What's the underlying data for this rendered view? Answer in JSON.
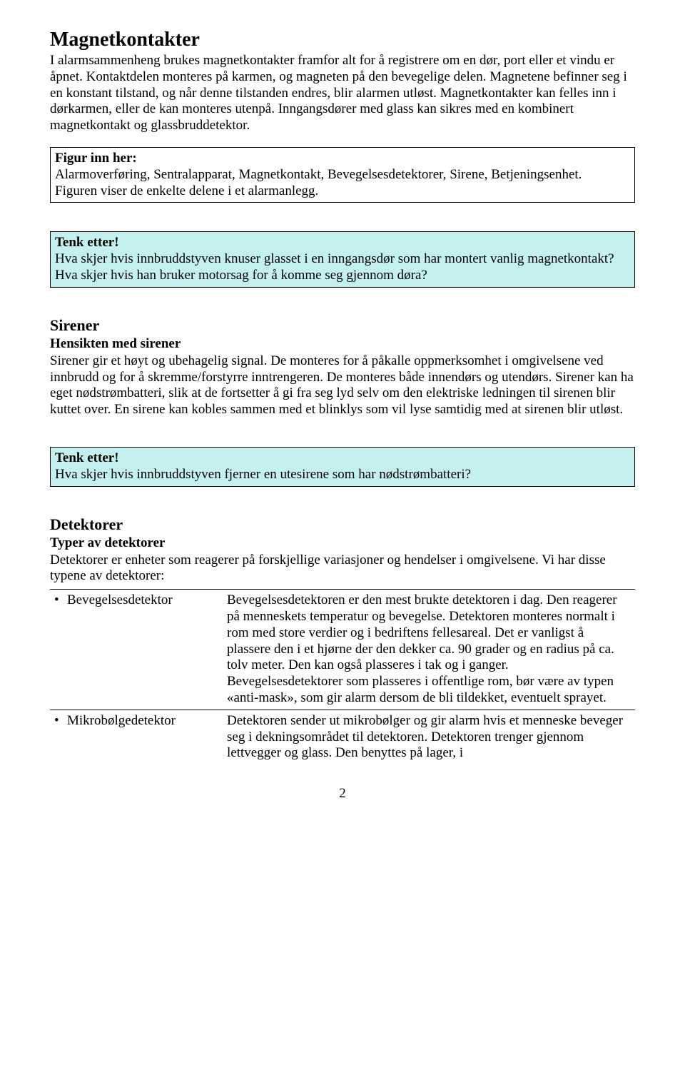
{
  "magnet": {
    "title": "Magnetkontakter",
    "body": "I alarmsammenheng brukes magnetkontakter framfor alt for å registrere om en dør, port eller et vindu er åpnet. Kontaktdelen monteres på karmen, og magneten på den bevegelige delen. Magnetene befinner seg i en konstant tilstand, og når denne tilstanden endres, blir alarmen utløst. Magnetkontakter kan felles inn i dørkarmen, eller de kan monteres utenpå. Inngangsdører med glass kan sikres med en kombinert magnetkontakt og glassbruddetektor."
  },
  "figur": {
    "heading": "Figur inn her:",
    "line1": "Alarmoverføring, Sentralapparat, Magnetkontakt, Bevegelsesdetektorer, Sirene, Betjeningsenhet.",
    "line2": "Figuren viser de enkelte delene i et alarmanlegg."
  },
  "tenk1": {
    "heading": "Tenk etter!",
    "body": "Hva skjer hvis innbruddstyven knuser glasset i en inngangsdør som har montert vanlig magnetkontakt? Hva skjer hvis han bruker motorsag for å komme seg gjennom døra?"
  },
  "sirener": {
    "title": "Sirener",
    "subhead": "Hensikten med sirener",
    "body": "Sirener gir et høyt og ubehagelig signal. De monteres for å påkalle oppmerksomhet i omgivelsene ved innbrudd og for å skremme/forstyrre inntrengeren. De monteres både innendørs og utendørs. Sirener kan ha eget nødstrømbatteri, slik at de fortsetter å gi fra seg lyd selv om den elektriske ledningen til sirenen blir kuttet over. En sirene kan kobles sammen med et blinklys som vil lyse samtidig med at sirenen blir utløst."
  },
  "tenk2": {
    "heading": "Tenk etter!",
    "body": "Hva skjer hvis innbruddstyven fjerner en utesirene som har nødstrømbatteri?"
  },
  "detektorer": {
    "title": "Detektorer",
    "subhead": "Typer av detektorer",
    "intro": "Detektorer er enheter som reagerer på forskjellige variasjoner og hendelser i omgivelsene. Vi har disse typene av detektorer:",
    "rows": [
      {
        "name": "Bevegelsesdetektor",
        "desc": "Bevegelsesdetektoren er den mest brukte detektoren i dag. Den reagerer på menneskets temperatur og bevegelse. Detektoren monteres normalt i rom med store verdier og i bedriftens fellesareal. Det er vanligst å plassere den i et hjørne der den dekker ca. 90 grader og en radius på ca. tolv meter. Den kan også plasseres i tak og i ganger.\nBevegelsesdetektorer som plasseres i offentlige rom, bør være av typen «anti-mask», som gir alarm dersom de bli tildekket, eventuelt sprayet."
      },
      {
        "name": "Mikrobølgedetektor",
        "desc": "Detektoren sender ut mikrobølger og gir alarm hvis et menneske beveger seg i dekningsområdet til detektoren. Detektoren trenger gjennom lettvegger og glass. Den benyttes på lager, i"
      }
    ]
  },
  "page_number": "2",
  "colors": {
    "tenk_bg": "#c5f0f0",
    "border": "#000000",
    "text": "#000000",
    "page_bg": "#ffffff"
  }
}
